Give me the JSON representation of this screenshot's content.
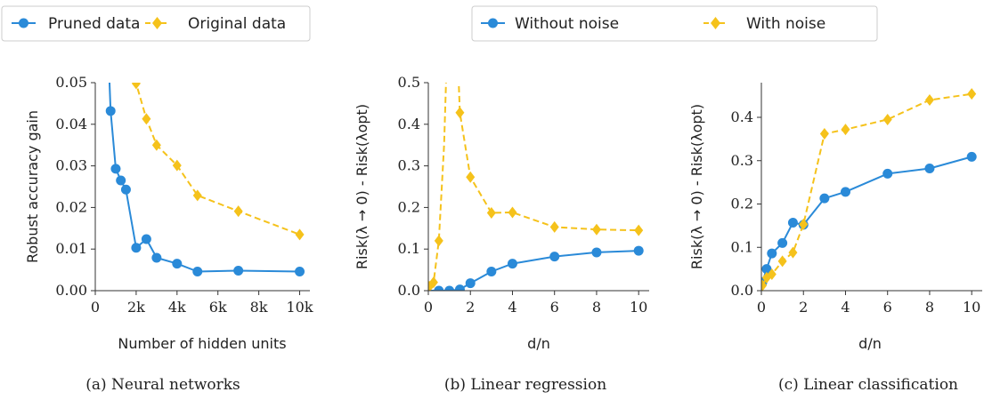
{
  "colors": {
    "blue": "#2a8ad8",
    "yellow": "#f5c21b"
  },
  "legends": [
    {
      "items": [
        "Pruned data",
        "Original data"
      ]
    },
    {
      "items": [
        "Without noise",
        "With noise"
      ]
    }
  ],
  "chart_data": [
    {
      "type": "line",
      "caption": "(a) Neural networks",
      "xlabel": "Number of hidden units",
      "ylabel": "Robust accuracy gain",
      "xlim": [
        0,
        10500
      ],
      "ylim": [
        0,
        0.05
      ],
      "xticks": [
        0,
        2000,
        4000,
        6000,
        8000,
        10000
      ],
      "xtick_labels": [
        "0",
        "2k",
        "4k",
        "6k",
        "8k",
        "10k"
      ],
      "yticks": [
        0,
        0.01,
        0.02,
        0.03,
        0.04,
        0.05
      ],
      "ytick_labels": [
        "0.00",
        "0.01",
        "0.02",
        "0.03",
        "0.04",
        "0.05"
      ],
      "series": [
        {
          "name": "Pruned data",
          "color": "#2a8ad8",
          "dash": false,
          "marker": "circle",
          "line_x": [
            500,
            750,
            1000,
            1250,
            1500,
            2000,
            2500,
            3000,
            4000,
            5000,
            7000,
            10000
          ],
          "line_y": [
            0.075,
            0.0432,
            0.0293,
            0.0265,
            0.0243,
            0.0103,
            0.0124,
            0.0079,
            0.0065,
            0.0046,
            0.0048,
            0.0046
          ],
          "x": [
            750,
            1000,
            1250,
            1500,
            2000,
            2500,
            3000,
            4000,
            5000,
            7000,
            10000
          ],
          "y": [
            0.0432,
            0.0293,
            0.0265,
            0.0243,
            0.0103,
            0.0124,
            0.0079,
            0.0065,
            0.0046,
            0.0048,
            0.0046
          ]
        },
        {
          "name": "Original data",
          "color": "#f5c21b",
          "dash": true,
          "marker": "diamond",
          "line_x": [
            1500,
            2000,
            2500,
            3000,
            4000,
            5000,
            7000,
            10000
          ],
          "line_y": [
            0.06,
            0.0498,
            0.0413,
            0.035,
            0.0301,
            0.0229,
            0.0191,
            0.0135
          ],
          "x": [
            2000,
            2500,
            3000,
            4000,
            5000,
            7000,
            10000
          ],
          "y": [
            0.0498,
            0.0413,
            0.035,
            0.0301,
            0.0229,
            0.0191,
            0.0135
          ]
        }
      ]
    },
    {
      "type": "line",
      "caption": "(b) Linear regression",
      "xlabel": "d/n",
      "ylabel": "Risk(λ → 0) - Risk(λopt)",
      "xlim": [
        0,
        10.5
      ],
      "ylim": [
        0,
        0.5
      ],
      "xticks": [
        0,
        2,
        4,
        6,
        8,
        10
      ],
      "xtick_labels": [
        "0",
        "2",
        "4",
        "6",
        "8",
        "10"
      ],
      "yticks": [
        0,
        0.1,
        0.2,
        0.3,
        0.4,
        0.5
      ],
      "ytick_labels": [
        "0.0",
        "0.1",
        "0.2",
        "0.3",
        "0.4",
        "0.5"
      ],
      "series": [
        {
          "name": "Without noise",
          "color": "#2a8ad8",
          "dash": false,
          "marker": "circle",
          "line_x": [
            0.1,
            0.5,
            1,
            1.5,
            2,
            3,
            4,
            6,
            8,
            10
          ],
          "line_y": [
            0,
            0,
            0,
            0.003,
            0.018,
            0.046,
            0.065,
            0.082,
            0.092,
            0.096
          ],
          "x": [
            0.5,
            1,
            1.5,
            2,
            3,
            4,
            6,
            8,
            10
          ],
          "y": [
            0,
            0,
            0.003,
            0.018,
            0.046,
            0.065,
            0.082,
            0.092,
            0.096
          ]
        },
        {
          "name": "With noise",
          "color": "#f5c21b",
          "dash": true,
          "marker": "diamond",
          "line_x": [
            0.05,
            0.25,
            0.5,
            0.75,
            0.9,
            1.1,
            1.3,
            1.5,
            2,
            3,
            4,
            6,
            8,
            10
          ],
          "line_y": [
            0.01,
            0.02,
            0.12,
            0.35,
            0.6,
            1.0,
            0.7,
            0.428,
            0.273,
            0.187,
            0.188,
            0.153,
            0.147,
            0.145
          ],
          "x": [
            0.05,
            0.25,
            0.5,
            1.5,
            2,
            3,
            4,
            6,
            8,
            10
          ],
          "y": [
            0.01,
            0.02,
            0.12,
            0.428,
            0.273,
            0.187,
            0.188,
            0.153,
            0.147,
            0.145
          ]
        }
      ]
    },
    {
      "type": "line",
      "caption": "(c) Linear classification",
      "xlabel": "d/n",
      "ylabel": "Risk(λ → 0) - Risk(λopt)",
      "xlim": [
        0,
        10.5
      ],
      "ylim": [
        0,
        0.48
      ],
      "xticks": [
        0,
        2,
        4,
        6,
        8,
        10
      ],
      "xtick_labels": [
        "0",
        "2",
        "4",
        "6",
        "8",
        "10"
      ],
      "yticks": [
        0,
        0.1,
        0.2,
        0.3,
        0.4
      ],
      "ytick_labels": [
        "0.0",
        "0.1",
        "0.2",
        "0.3",
        "0.4"
      ],
      "series": [
        {
          "name": "Without noise",
          "color": "#2a8ad8",
          "dash": false,
          "marker": "circle",
          "line_x": [
            0.05,
            0.25,
            0.5,
            1,
            1.5,
            2,
            3,
            4,
            6,
            8,
            10
          ],
          "line_y": [
            0.02,
            0.05,
            0.086,
            0.11,
            0.157,
            0.152,
            0.213,
            0.228,
            0.27,
            0.282,
            0.309
          ],
          "x": [
            0.05,
            0.25,
            0.5,
            1,
            1.5,
            2,
            3,
            4,
            6,
            8,
            10
          ],
          "y": [
            0.02,
            0.05,
            0.086,
            0.11,
            0.157,
            0.152,
            0.213,
            0.228,
            0.27,
            0.282,
            0.309
          ]
        },
        {
          "name": "With noise",
          "color": "#f5c21b",
          "dash": true,
          "marker": "diamond",
          "line_x": [
            0.05,
            0.25,
            0.5,
            1,
            1.5,
            2,
            3,
            4,
            6,
            8,
            10
          ],
          "line_y": [
            0.012,
            0.03,
            0.038,
            0.068,
            0.088,
            0.153,
            0.362,
            0.372,
            0.395,
            0.44,
            0.454
          ],
          "x": [
            0.05,
            0.25,
            0.5,
            1,
            1.5,
            2,
            3,
            4,
            6,
            8,
            10
          ],
          "y": [
            0.012,
            0.03,
            0.038,
            0.068,
            0.088,
            0.153,
            0.362,
            0.372,
            0.395,
            0.44,
            0.454
          ]
        }
      ]
    }
  ]
}
